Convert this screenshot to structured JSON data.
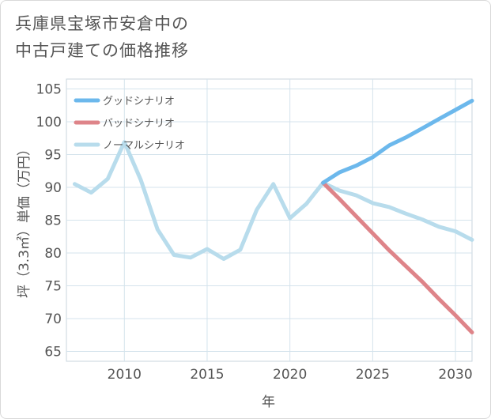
{
  "title": {
    "line1": "兵庫県宝塚市安倉中の",
    "line2": "中古戸建ての価格推移"
  },
  "chart_data": {
    "type": "line",
    "xlabel": "年",
    "ylabel": "坪（3.3㎡）単価（万円）",
    "xlim": [
      2006.5,
      2031
    ],
    "ylim": [
      63.5,
      106.5
    ],
    "xticks": [
      2010,
      2015,
      2020,
      2025,
      2030
    ],
    "yticks": [
      65,
      70,
      75,
      80,
      85,
      90,
      95,
      100,
      105
    ],
    "grid": true,
    "legend_position": "top-left",
    "series": [
      {
        "name": "グッドシナリオ",
        "color": "#6cb8ec",
        "x": [
          2022,
          2023,
          2024,
          2025,
          2026,
          2027,
          2028,
          2029,
          2030,
          2031
        ],
        "y": [
          90.7,
          92.3,
          93.3,
          94.6,
          96.4,
          97.6,
          99.0,
          100.4,
          101.8,
          103.2
        ]
      },
      {
        "name": "バッドシナリオ",
        "color": "#de8489",
        "x": [
          2022,
          2023,
          2024,
          2025,
          2026,
          2027,
          2028,
          2029,
          2030,
          2031
        ],
        "y": [
          90.7,
          88.2,
          85.6,
          83.0,
          80.4,
          78.0,
          75.6,
          73.0,
          70.5,
          67.9
        ]
      },
      {
        "name": "ノーマルシナリオ",
        "color": "#b8dcec",
        "x": [
          2007,
          2008,
          2009,
          2010,
          2011,
          2012,
          2013,
          2014,
          2015,
          2016,
          2017,
          2018,
          2019,
          2020,
          2021,
          2022,
          2023,
          2024,
          2025,
          2026,
          2027,
          2028,
          2029,
          2030,
          2031
        ],
        "y": [
          90.5,
          89.2,
          91.3,
          96.9,
          91.1,
          83.6,
          79.7,
          79.3,
          80.6,
          79.1,
          80.5,
          86.6,
          90.5,
          85.3,
          87.5,
          90.7,
          89.5,
          88.8,
          87.6,
          87.0,
          86.0,
          85.1,
          84.0,
          83.3,
          82.0
        ]
      }
    ]
  }
}
